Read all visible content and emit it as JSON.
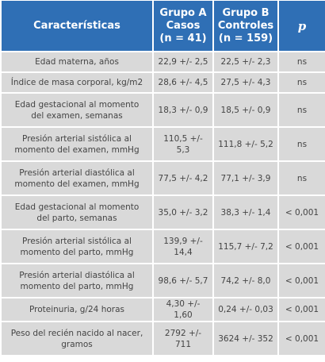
{
  "table": {
    "header": [
      [
        "Características"
      ],
      [
        "Grupo A",
        "Casos",
        "(n = 41)"
      ],
      [
        "Grupo B",
        "Controles",
        "(n = 159)"
      ],
      [
        "p"
      ]
    ],
    "rows": [
      [
        "Edad materna, años",
        "22,9 +/- 2,5",
        "22,5 +/- 2,3",
        "ns"
      ],
      [
        "Índice de masa corporal, kg/m2",
        "28,6 +/- 4,5",
        "27,5 +/- 4,3",
        "ns"
      ],
      [
        "Edad gestacional al momento del examen, semanas",
        "18,3 +/- 0,9",
        "18,5 +/- 0,9",
        "ns"
      ],
      [
        "Presión arterial sistólica al momento del examen, mmHg",
        "110,5 +/- 5,3",
        "111,8 +/- 5,2",
        "ns"
      ],
      [
        "Presión arterial diastólica al momento del examen, mmHg",
        "77,5 +/- 4,2",
        "77,1 +/- 3,9",
        "ns"
      ],
      [
        "Edad gestacional al momento del parto, semanas",
        "35,0 +/- 3,2",
        "38,3 +/- 1,4",
        "< 0,001"
      ],
      [
        "Presión arterial sistólica al momento del parto, mmHg",
        "139,9 +/- 14,4",
        "115,7 +/- 7,2",
        "< 0,001"
      ],
      [
        "Presión arterial diastólica al momento del parto, mmHg",
        "98,6 +/- 5,7",
        "74,2 +/- 8,0",
        "< 0,001"
      ],
      [
        "Proteinuria, g/24 horas",
        "4,30 +/- 1,60",
        "0,24 +/- 0,03",
        "< 0,001"
      ],
      [
        "Peso del recién nacido al nacer, gramos",
        "2792 +/- 711",
        "3624 +/- 352",
        "< 0,001"
      ]
    ]
  }
}
